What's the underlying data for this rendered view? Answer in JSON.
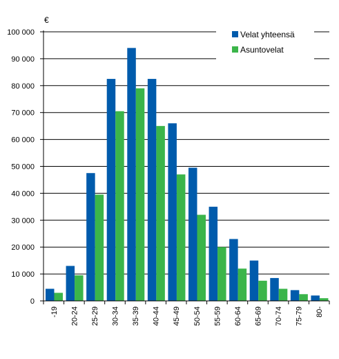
{
  "chart_data": {
    "type": "bar",
    "title": "",
    "xlabel": "",
    "ylabel": "",
    "unit": "€",
    "categories": [
      "-19",
      "20-24",
      "25-29",
      "30-34",
      "35-39",
      "40-44",
      "45-49",
      "50-54",
      "55-59",
      "60-64",
      "65-69",
      "70-74",
      "75-79",
      "80-"
    ],
    "ylim": [
      0,
      100000
    ],
    "yticks": [
      0,
      10000,
      20000,
      30000,
      40000,
      50000,
      60000,
      70000,
      80000,
      90000,
      100000
    ],
    "ytick_labels": [
      "0",
      "10 000",
      "20 000",
      "30 000",
      "40 000",
      "50 000",
      "60 000",
      "70 000",
      "80 000",
      "90 000",
      "100 000"
    ],
    "grid": true,
    "legend_position": "top-right",
    "series": [
      {
        "name": "Velat yhteensä",
        "color": "#005bac",
        "values": [
          4500,
          13000,
          47500,
          82500,
          94000,
          82500,
          66000,
          49500,
          35000,
          23000,
          15000,
          8500,
          4000,
          2000
        ]
      },
      {
        "name": "Asuntovelat",
        "color": "#3bb54a",
        "values": [
          3000,
          9500,
          39500,
          70500,
          79000,
          65000,
          47000,
          32000,
          20000,
          12000,
          7500,
          4500,
          2500,
          1000
        ]
      }
    ]
  }
}
